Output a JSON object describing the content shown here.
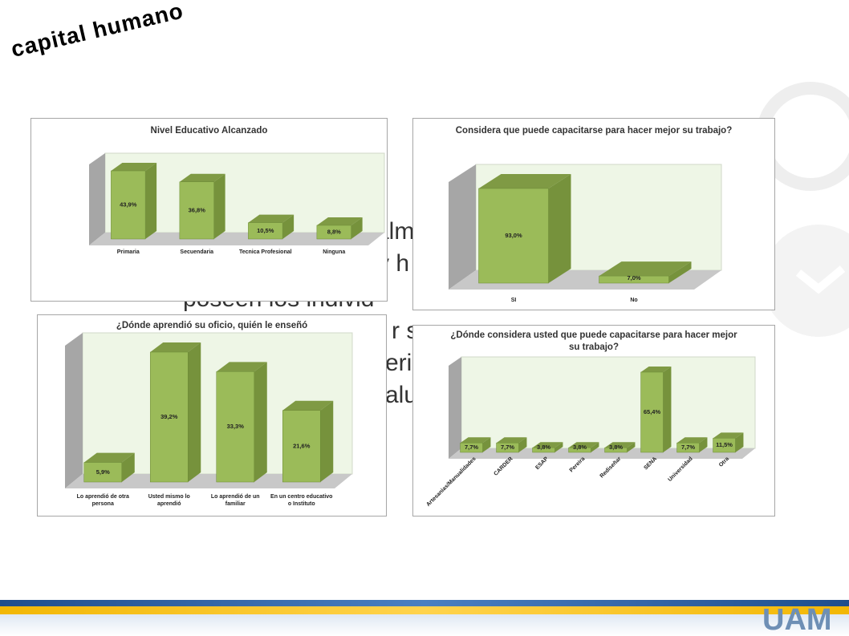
{
  "header": {
    "title": "capital humano"
  },
  "body_fragments": [
    "alm",
    "y h",
    "poseen los individ",
    "r s",
    "eri",
    "alu"
  ],
  "logo": "UAM",
  "chart_data": [
    {
      "type": "bar",
      "title": "Nivel Educativo Alcanzado",
      "categories": [
        "Primaria",
        "Secuendaria",
        "Tecnica Profesional",
        "Ninguna"
      ],
      "values": [
        43.9,
        36.8,
        10.5,
        8.8
      ],
      "value_labels": [
        "43,9%",
        "36,8%",
        "10,5%",
        "8,8%"
      ],
      "color": "#9bbb59"
    },
    {
      "type": "bar",
      "title": "Considera que puede capacitarse para hacer mejor su trabajo?",
      "categories": [
        "SI",
        "No"
      ],
      "values": [
        93.0,
        7.0
      ],
      "value_labels": [
        "93,0%",
        "7,0%"
      ],
      "color": "#9bbb59"
    },
    {
      "type": "bar",
      "title": "¿Dónde aprendió su oficio, quién le enseñó",
      "categories": [
        "Lo aprendió de otra persona",
        "Usted mismo lo aprendió",
        "Lo aprendió de un familiar",
        "En un centro educativo o Instituto"
      ],
      "values": [
        5.9,
        39.2,
        33.3,
        21.6
      ],
      "value_labels": [
        "5,9%",
        "39,2%",
        "33,3%",
        "21,6%"
      ],
      "color": "#9bbb59"
    },
    {
      "type": "bar",
      "title": "¿Dónde considera usted que puede capacitarse para hacer mejor su trabajo?",
      "categories": [
        "Artesanias/Manualidades",
        "CARDER",
        "ESAP",
        "Pereira",
        "Rediseñar",
        "SENA",
        "Universidad",
        "Otra"
      ],
      "values": [
        7.7,
        7.7,
        3.8,
        3.8,
        3.8,
        65.4,
        7.7,
        11.5
      ],
      "value_labels": [
        "7,7%",
        "7,7%",
        "3,8%",
        "3,8%",
        "3,8%",
        "65,4%",
        "7,7%",
        "11,5%"
      ],
      "color": "#9bbb59"
    }
  ]
}
